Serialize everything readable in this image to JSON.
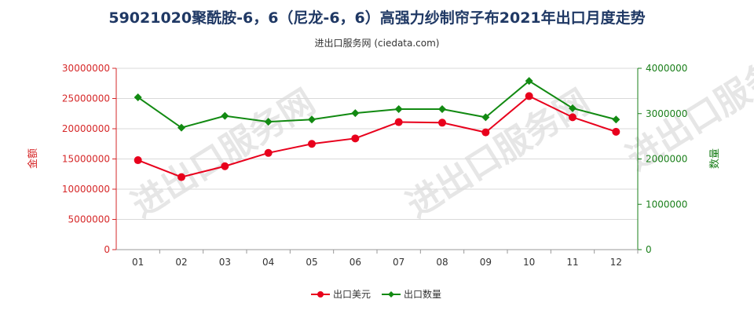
{
  "page": {
    "title": "59021020聚酰胺-6，6（尼龙-6，6）高强力纱制帘子布2021年出口月度走势",
    "subtitle": "进出口服务网 (ciedata.com)",
    "watermark": "进出口服务网"
  },
  "colors": {
    "red": "#e8001c",
    "green": "#128a12",
    "axis_left": "#d62728",
    "axis_right": "#1a7f1a"
  },
  "chart_data": {
    "type": "line",
    "categories": [
      "01",
      "02",
      "03",
      "04",
      "05",
      "06",
      "07",
      "08",
      "09",
      "10",
      "11",
      "12"
    ],
    "y_left_label": "金额",
    "y_right_label": "数量",
    "y_left_range": [
      0,
      30000000
    ],
    "y_left_ticks": [
      "0",
      "5000000",
      "10000000",
      "15000000",
      "20000000",
      "25000000",
      "30000000"
    ],
    "y_right_range": [
      0,
      4000000
    ],
    "y_right_ticks": [
      "0",
      "1000000",
      "2000000",
      "3000000",
      "4000000"
    ],
    "series": [
      {
        "name": "出口美元",
        "axis": "left",
        "color": "#e8001c",
        "marker": "circle",
        "values": [
          14800000,
          12000000,
          13800000,
          16000000,
          17500000,
          18400000,
          21100000,
          21000000,
          19400000,
          25400000,
          21900000,
          19500000
        ]
      },
      {
        "name": "出口数量",
        "axis": "right",
        "color": "#128a12",
        "marker": "diamond",
        "values": [
          3360000,
          2690000,
          2950000,
          2820000,
          2870000,
          3010000,
          3100000,
          3100000,
          2920000,
          3720000,
          3120000,
          2870000
        ]
      }
    ],
    "legend_position": "bottom-center",
    "grid": true
  }
}
